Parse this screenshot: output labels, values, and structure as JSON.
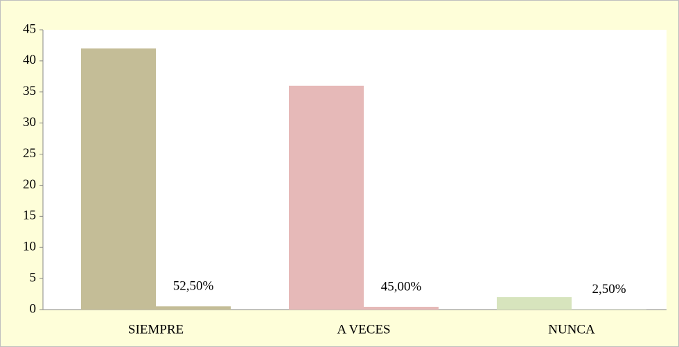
{
  "chart_data": {
    "type": "bar",
    "categories": [
      "SIEMPRE",
      "A VECES",
      "NUNCA"
    ],
    "series": [
      {
        "colors": [
          "#c4bd97",
          "#e6b9b8",
          "#d7e4bd"
        ],
        "values": [
          42,
          36,
          2
        ]
      },
      {
        "colors": [
          "#c4bd97",
          "#e6b9b8",
          "#d7e4bd"
        ],
        "values": [
          0.525,
          0.45,
          0.025
        ],
        "value_labels": [
          "52,50%",
          "45,00%",
          "2,50%"
        ]
      }
    ],
    "ylim": [
      0,
      45
    ],
    "yticks": [
      0,
      5,
      10,
      15,
      20,
      25,
      30,
      35,
      40,
      45
    ]
  }
}
